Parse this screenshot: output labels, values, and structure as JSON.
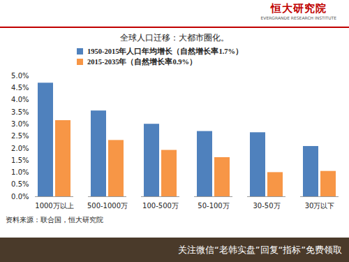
{
  "chart_data": {
    "type": "bar",
    "title": "全球人口迁移：大都市圈化。",
    "annotations": [
      "恒大研究院",
      "EVERGRANDE RESEARCH INSTITUTE",
      "资料来源：联合国，恒大研究院",
      "关注微信“老韩实盘”回复“指标”免费领取"
    ],
    "categories": [
      "1000万以上",
      "500-1000万",
      "100-500万",
      "50-100万",
      "30-50万",
      "30万以下"
    ],
    "series": [
      {
        "name": "1950-2015年人口年均增长（自然增长率1.7%）",
        "color": "#4f81bd",
        "values": [
          4.7,
          3.55,
          3.0,
          2.7,
          2.65,
          2.08
        ]
      },
      {
        "name": "2015-2035年（自然增长率0.9%）",
        "color": "#f79646",
        "values": [
          3.15,
          2.33,
          1.92,
          1.62,
          1.0,
          1.05
        ]
      }
    ],
    "ylim": [
      0,
      5
    ],
    "yticks": [
      {
        "value": 0,
        "label": "0.0%"
      },
      {
        "value": 0.5,
        "label": "0.5%"
      },
      {
        "value": 1,
        "label": "1.0%"
      },
      {
        "value": 1.5,
        "label": "1.5%"
      },
      {
        "value": 2,
        "label": "2.0%"
      },
      {
        "value": 2.5,
        "label": "2.5%"
      },
      {
        "value": 3,
        "label": "3.0%"
      },
      {
        "value": 3.5,
        "label": "3.5%"
      },
      {
        "value": 4,
        "label": "4.0%"
      },
      {
        "value": 4.5,
        "label": "4.5%"
      },
      {
        "value": 5,
        "label": "5.0%"
      }
    ],
    "grid": false,
    "legend": "top"
  }
}
